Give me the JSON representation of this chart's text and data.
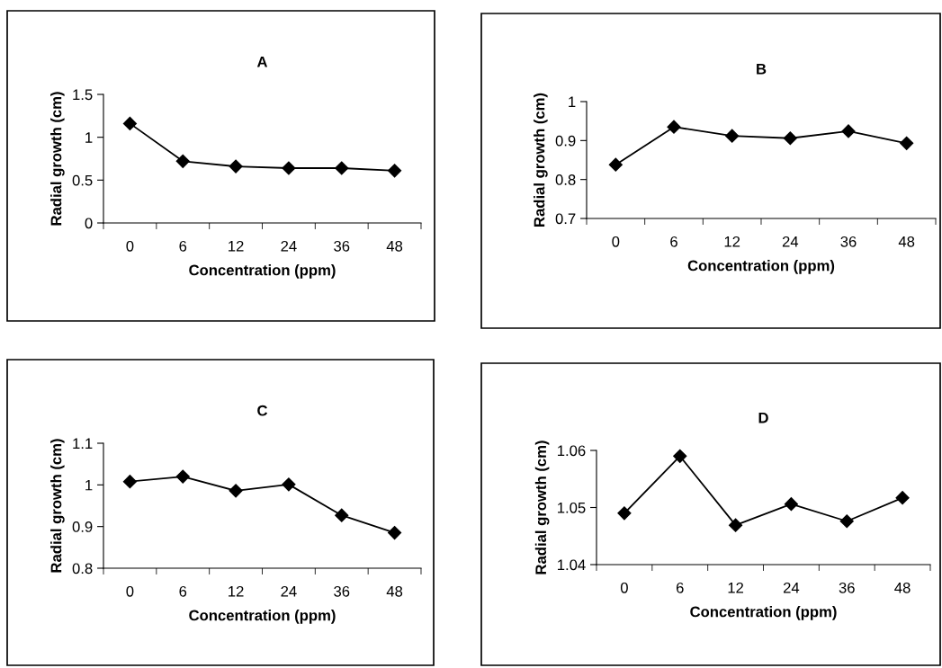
{
  "chart_data": [
    {
      "type": "line",
      "title": "A",
      "xlabel": "Concentration (ppm)",
      "ylabel": "Radial growth (cm)",
      "categories": [
        "0",
        "6",
        "12",
        "24",
        "36",
        "48"
      ],
      "series": [
        {
          "color": "#000000",
          "values": [
            1.16,
            0.72,
            0.66,
            0.64,
            0.64,
            0.61
          ]
        }
      ],
      "ylim": [
        0,
        1.5
      ],
      "yticks": [
        0,
        0.5,
        1,
        1.5
      ],
      "marker": "diamond"
    },
    {
      "type": "line",
      "title": "B",
      "xlabel": "Concentration (ppm)",
      "ylabel": "Radial growth (cm)",
      "categories": [
        "0",
        "6",
        "12",
        "24",
        "36",
        "48"
      ],
      "series": [
        {
          "color": "#000000",
          "values": [
            0.838,
            0.935,
            0.912,
            0.906,
            0.924,
            0.893
          ]
        }
      ],
      "ylim": [
        0.7,
        1
      ],
      "yticks": [
        0.7,
        0.8,
        0.9,
        1
      ],
      "marker": "diamond"
    },
    {
      "type": "line",
      "title": "C",
      "xlabel": "Concentration (ppm)",
      "ylabel": "Radial growth (cm)",
      "categories": [
        "0",
        "6",
        "12",
        "24",
        "36",
        "48"
      ],
      "series": [
        {
          "color": "#000000",
          "values": [
            1.008,
            1.02,
            0.986,
            1.001,
            0.927,
            0.885
          ]
        }
      ],
      "ylim": [
        0.8,
        1.1
      ],
      "yticks": [
        0.8,
        0.9,
        1,
        1.1
      ],
      "marker": "diamond"
    },
    {
      "type": "line",
      "title": "D",
      "xlabel": "Concentration (ppm)",
      "ylabel": "Radial growth (cm)",
      "categories": [
        "0",
        "6",
        "12",
        "24",
        "36",
        "48"
      ],
      "series": [
        {
          "color": "#000000",
          "values": [
            1.049,
            1.059,
            1.0469,
            1.0506,
            1.0476,
            1.0517
          ]
        }
      ],
      "ylim": [
        1.04,
        1.06
      ],
      "yticks": [
        1.04,
        1.05,
        1.06
      ],
      "marker": "diamond"
    }
  ]
}
